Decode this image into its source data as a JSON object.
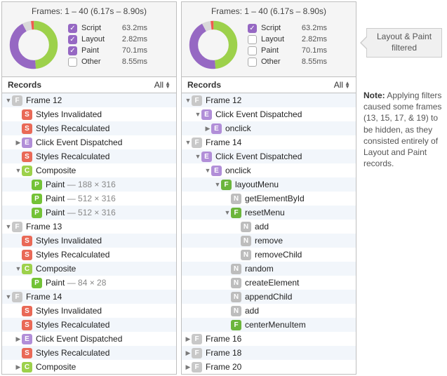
{
  "summary": {
    "title": "Frames: 1 – 40 (6.17s – 8.90s)",
    "donut": {
      "colors": {
        "script": "#9668c3",
        "layout": "#f05a4f",
        "paint": "#9dd14b",
        "other": "#d9d9d9"
      },
      "values": {
        "script": 63.2,
        "layout": 2.82,
        "paint": 70.1,
        "other": 8.55
      }
    },
    "legend": [
      {
        "label": "Script",
        "value": "63.2ms"
      },
      {
        "label": "Layout",
        "value": "2.82ms"
      },
      {
        "label": "Paint",
        "value": "70.1ms"
      },
      {
        "label": "Other",
        "value": "8.55ms"
      }
    ],
    "left_checks": [
      true,
      true,
      true,
      false
    ],
    "right_checks": [
      true,
      false,
      false,
      false
    ]
  },
  "records_header": {
    "title": "Records",
    "filter": "All"
  },
  "callout": "Layout & Paint filtered",
  "note_bold": "Note:",
  "note": " Applying filters caused some frames (13, 15, 17, & 19) to be hidden, as they consisted entirely of Layout and Paint records.",
  "left_tree": [
    {
      "d": 0,
      "c": "down",
      "b": "F",
      "t": "Frame 12"
    },
    {
      "d": 1,
      "c": "",
      "b": "S",
      "t": "Styles Invalidated"
    },
    {
      "d": 1,
      "c": "",
      "b": "S",
      "t": "Styles Recalculated"
    },
    {
      "d": 1,
      "c": "right",
      "b": "E",
      "t": "Click Event Dispatched"
    },
    {
      "d": 1,
      "c": "",
      "b": "S",
      "t": "Styles Recalculated"
    },
    {
      "d": 1,
      "c": "down",
      "b": "C",
      "t": "Composite"
    },
    {
      "d": 2,
      "c": "",
      "b": "P",
      "t": "Paint",
      "dim": " — 188 × 316"
    },
    {
      "d": 2,
      "c": "",
      "b": "P",
      "t": "Paint",
      "dim": " — 512 × 316"
    },
    {
      "d": 2,
      "c": "",
      "b": "P",
      "t": "Paint",
      "dim": " — 512 × 316"
    },
    {
      "d": 0,
      "c": "down",
      "b": "F",
      "t": "Frame 13"
    },
    {
      "d": 1,
      "c": "",
      "b": "S",
      "t": "Styles Invalidated"
    },
    {
      "d": 1,
      "c": "",
      "b": "S",
      "t": "Styles Recalculated"
    },
    {
      "d": 1,
      "c": "down",
      "b": "C",
      "t": "Composite"
    },
    {
      "d": 2,
      "c": "",
      "b": "P",
      "t": "Paint",
      "dim": " — 84 × 28"
    },
    {
      "d": 0,
      "c": "down",
      "b": "F",
      "t": "Frame 14"
    },
    {
      "d": 1,
      "c": "",
      "b": "S",
      "t": "Styles Invalidated"
    },
    {
      "d": 1,
      "c": "",
      "b": "S",
      "t": "Styles Recalculated"
    },
    {
      "d": 1,
      "c": "right",
      "b": "E",
      "t": "Click Event Dispatched"
    },
    {
      "d": 1,
      "c": "",
      "b": "S",
      "t": "Styles Recalculated"
    },
    {
      "d": 1,
      "c": "right",
      "b": "C",
      "t": "Composite"
    }
  ],
  "right_tree": [
    {
      "d": 0,
      "c": "down",
      "b": "F",
      "t": "Frame 12"
    },
    {
      "d": 1,
      "c": "down",
      "b": "E",
      "t": "Click Event Dispatched"
    },
    {
      "d": 2,
      "c": "right",
      "b": "E",
      "t": "onclick"
    },
    {
      "d": 0,
      "c": "down",
      "b": "F",
      "t": "Frame 14"
    },
    {
      "d": 1,
      "c": "down",
      "b": "E",
      "t": "Click Event Dispatched"
    },
    {
      "d": 2,
      "c": "down",
      "b": "E",
      "t": "onclick"
    },
    {
      "d": 3,
      "c": "down",
      "b": "f",
      "t": "layoutMenu"
    },
    {
      "d": 4,
      "c": "",
      "b": "N",
      "t": "getElementById"
    },
    {
      "d": 4,
      "c": "down",
      "b": "f",
      "t": "resetMenu"
    },
    {
      "d": 5,
      "c": "",
      "b": "N",
      "t": "add"
    },
    {
      "d": 5,
      "c": "",
      "b": "N",
      "t": "remove"
    },
    {
      "d": 5,
      "c": "",
      "b": "N",
      "t": "removeChild"
    },
    {
      "d": 4,
      "c": "",
      "b": "N",
      "t": "random"
    },
    {
      "d": 4,
      "c": "",
      "b": "N",
      "t": "createElement"
    },
    {
      "d": 4,
      "c": "",
      "b": "N",
      "t": "appendChild"
    },
    {
      "d": 4,
      "c": "",
      "b": "N",
      "t": "add"
    },
    {
      "d": 4,
      "c": "",
      "b": "f",
      "t": "centerMenuItem"
    },
    {
      "d": 0,
      "c": "right",
      "b": "F",
      "t": "Frame 16"
    },
    {
      "d": 0,
      "c": "right",
      "b": "F",
      "t": "Frame 18"
    },
    {
      "d": 0,
      "c": "right",
      "b": "F",
      "t": "Frame 20"
    }
  ]
}
